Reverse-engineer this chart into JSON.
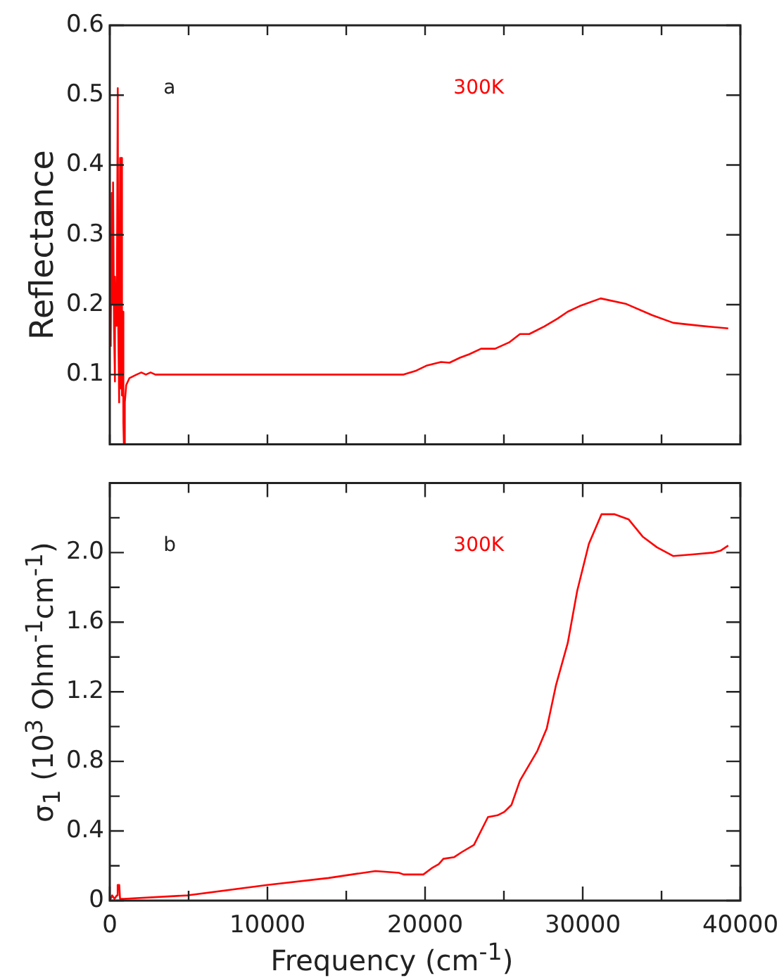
{
  "chart_data": [
    {
      "type": "line",
      "ylabel": "Reflectance",
      "annotations": [
        "a",
        "300K"
      ],
      "tick_labels": "y",
      "marker": "none",
      "line_style": "solid",
      "xlim": [
        0,
        40000
      ],
      "ylim": [
        0,
        0.6
      ],
      "xticks": [
        {
          "value": 0,
          "label": null
        },
        {
          "value": 5000,
          "label": null
        },
        {
          "value": 10000,
          "label": null
        },
        {
          "value": 15000,
          "label": null
        },
        {
          "value": 20000,
          "label": null
        },
        {
          "value": 25000,
          "label": null
        },
        {
          "value": 30000,
          "label": null
        },
        {
          "value": 35000,
          "label": null
        },
        {
          "value": 40000,
          "label": null
        }
      ],
      "yticks": [
        0.1,
        0.2,
        0.3,
        0.4,
        0.5,
        0.6
      ],
      "series": [
        {
          "color": "#ff0000",
          "x": [
            60,
            119,
            179,
            208,
            268,
            298,
            357,
            387,
            446,
            506,
            536,
            595,
            655,
            714,
            744,
            774,
            833,
            863,
            893,
            952,
            1042,
            1250,
            1700,
            2000,
            2290,
            2590,
            2890,
            18640,
            19380,
            20120,
            21010,
            21550,
            22200,
            22800,
            23550,
            24440,
            25330,
            26020,
            26610,
            27570,
            28400,
            29050,
            29800,
            31140,
            32770,
            34410,
            35750,
            37390,
            39230
          ],
          "values": [
            0.14,
            0.36,
            0.2,
            0.375,
            0.17,
            0.09,
            0.24,
            0.17,
            0.2,
            0.51,
            0.17,
            0.06,
            0.41,
            0.08,
            0.41,
            0.07,
            0.19,
            0.03,
            0.0,
            0.06,
            0.085,
            0.095,
            0.1,
            0.103,
            0.1,
            0.103,
            0.1,
            0.1,
            0.105,
            0.113,
            0.118,
            0.117,
            0.124,
            0.129,
            0.137,
            0.137,
            0.146,
            0.158,
            0.158,
            0.169,
            0.18,
            0.19,
            0.198,
            0.209,
            0.201,
            0.185,
            0.174,
            0.17,
            0.166
          ]
        }
      ]
    },
    {
      "type": "line",
      "xlabel": "Frequency (cm$^{-1}$)",
      "ylabel": "σ$_{1}$ (10$^{3}$ Ohm$^{-1}$cm$^{-1}$)",
      "annotations": [
        "b",
        "300K"
      ],
      "marker": "none",
      "line_style": "solid",
      "xlim": [
        0,
        40000
      ],
      "ylim": [
        0,
        2.4
      ],
      "xticks": [
        0,
        {
          "value": 5000,
          "label": null
        },
        10000,
        {
          "value": 15000,
          "label": null
        },
        20000,
        {
          "value": 25000,
          "label": null
        },
        30000,
        {
          "value": 35000,
          "label": null
        },
        40000
      ],
      "yticks": [
        0,
        {
          "value": 0.2,
          "label": null
        },
        0.4,
        {
          "value": 0.6,
          "label": null
        },
        0.8,
        {
          "value": 1.0,
          "label": null
        },
        1.2,
        {
          "value": 1.4,
          "label": null
        },
        1.6,
        {
          "value": 1.8,
          "label": null
        },
        {
          "value": 2.0,
          "label": "2.0"
        },
        {
          "value": 2.2,
          "label": null
        }
      ],
      "series": [
        {
          "color": "#ff0000",
          "x": [
            0,
            150,
            300,
            450,
            500,
            600,
            650,
            900,
            4940,
            10000,
            13870,
            16850,
            18340,
            18640,
            19890,
            20480,
            20870,
            21160,
            21850,
            22350,
            23100,
            23990,
            24590,
            25030,
            25480,
            26020,
            27120,
            27720,
            28310,
            29050,
            29650,
            30390,
            31190,
            32030,
            32920,
            33820,
            34710,
            35750,
            37090,
            38280,
            38730,
            39230
          ],
          "values": [
            0.0,
            0.03,
            0.01,
            0.03,
            0.09,
            0.09,
            0.01,
            0.01,
            0.03,
            0.09,
            0.13,
            0.17,
            0.16,
            0.15,
            0.15,
            0.19,
            0.21,
            0.24,
            0.25,
            0.28,
            0.32,
            0.48,
            0.49,
            0.51,
            0.55,
            0.69,
            0.86,
            0.99,
            1.24,
            1.48,
            1.78,
            2.05,
            2.22,
            2.22,
            2.19,
            2.09,
            2.03,
            1.98,
            1.99,
            2.0,
            2.01,
            2.04
          ]
        }
      ]
    }
  ]
}
